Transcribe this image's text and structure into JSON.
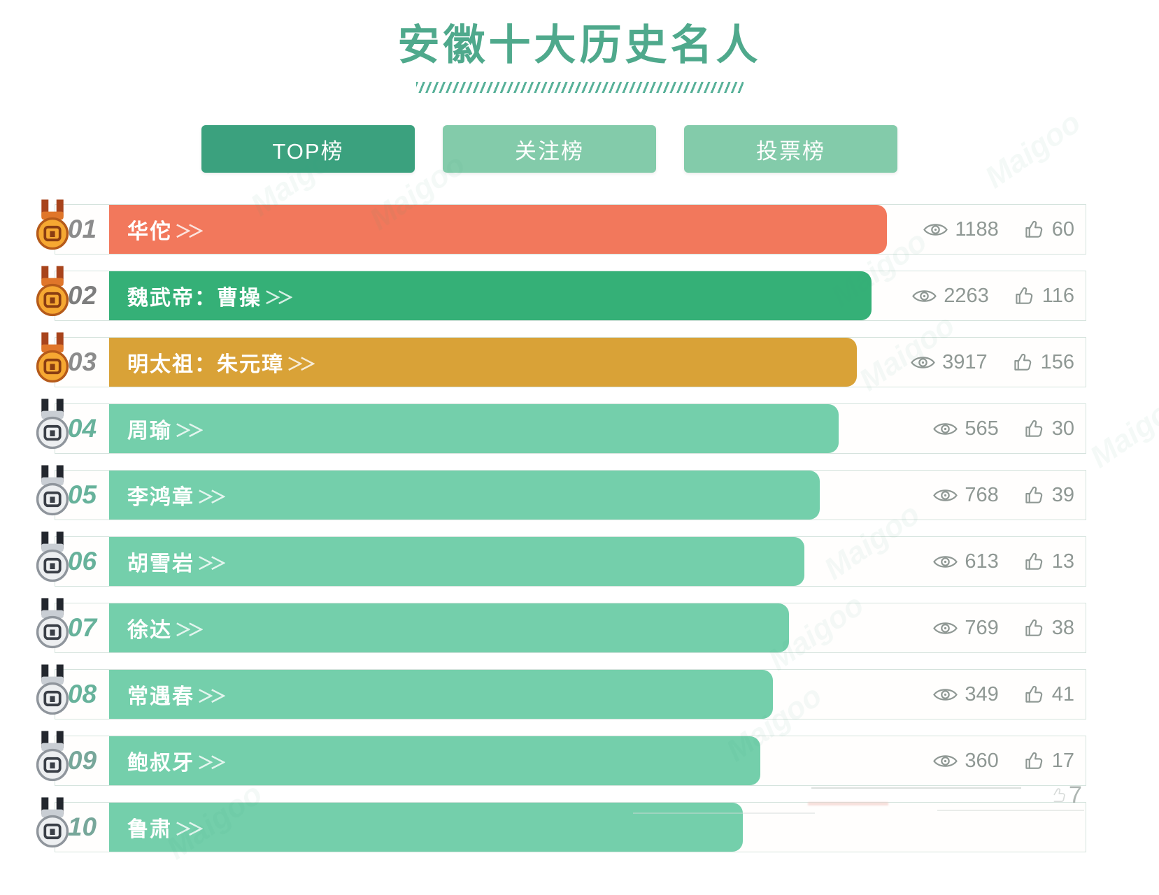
{
  "page": {
    "title": "安徽十大历史名人"
  },
  "tabs": [
    {
      "label": "TOP榜",
      "active": true
    },
    {
      "label": "关注榜",
      "active": false
    },
    {
      "label": "投票榜",
      "active": false
    }
  ],
  "list": {
    "arrow": "＞＞",
    "rows": [
      {
        "rank": "01",
        "name": "华佗",
        "views": "1188",
        "likes": "60",
        "bar_color": "#f2785c",
        "bar_width_pct": 75.5,
        "medal": "gold",
        "rank_color": "#8c8c8c",
        "stats_visible": true
      },
      {
        "rank": "02",
        "name": "魏武帝：曹操",
        "views": "2263",
        "likes": "116",
        "bar_color": "#35b077",
        "bar_width_pct": 74.0,
        "medal": "gold",
        "rank_color": "#7d7d7d",
        "stats_visible": true
      },
      {
        "rank": "03",
        "name": "明太祖：朱元璋",
        "views": "3917",
        "likes": "156",
        "bar_color": "#d9a237",
        "bar_width_pct": 72.6,
        "medal": "gold",
        "rank_color": "#8c8c8c",
        "stats_visible": true
      },
      {
        "rank": "04",
        "name": "周瑜",
        "views": "565",
        "likes": "30",
        "bar_color": "#74cfab",
        "bar_width_pct": 70.8,
        "medal": "silver",
        "rank_color": "#67b29b",
        "stats_visible": true
      },
      {
        "rank": "05",
        "name": "李鸿章",
        "views": "768",
        "likes": "39",
        "bar_color": "#74cfab",
        "bar_width_pct": 69.0,
        "medal": "silver",
        "rank_color": "#67b29b",
        "stats_visible": true
      },
      {
        "rank": "06",
        "name": "胡雪岩",
        "views": "613",
        "likes": "13",
        "bar_color": "#74cfab",
        "bar_width_pct": 67.5,
        "medal": "silver",
        "rank_color": "#67b29b",
        "stats_visible": true
      },
      {
        "rank": "07",
        "name": "徐达",
        "views": "769",
        "likes": "38",
        "bar_color": "#74cfab",
        "bar_width_pct": 66.0,
        "medal": "silver",
        "rank_color": "#67b29b",
        "stats_visible": true
      },
      {
        "rank": "08",
        "name": "常遇春",
        "views": "349",
        "likes": "41",
        "bar_color": "#74cfab",
        "bar_width_pct": 64.4,
        "medal": "silver",
        "rank_color": "#67b29b",
        "stats_visible": true
      },
      {
        "rank": "09",
        "name": "鲍叔牙",
        "views": "360",
        "likes": "17",
        "bar_color": "#74cfab",
        "bar_width_pct": 63.2,
        "medal": "silver",
        "rank_color": "#77a79a",
        "stats_visible": true
      },
      {
        "rank": "10",
        "name": "鲁肃",
        "views": "",
        "likes": "",
        "bar_color": "#74cfab",
        "bar_width_pct": 61.5,
        "medal": "silver",
        "rank_color": "#77a79a",
        "stats_visible": false
      }
    ]
  },
  "icons": {
    "views": "eye-icon",
    "likes": "thumbs-up-icon",
    "top3_medal": "gold-medal-icon",
    "other_medal": "silver-medal-icon"
  },
  "colors": {
    "title": "#4fa98c",
    "tab_active": "#3ba17e",
    "tab_inactive": "#83cbaa",
    "bar_rank1": "#f2785c",
    "bar_rank2": "#35b077",
    "bar_rank3": "#d9a237",
    "bar_default": "#74cfab"
  },
  "artifacts": {
    "remnant_text": "7"
  }
}
